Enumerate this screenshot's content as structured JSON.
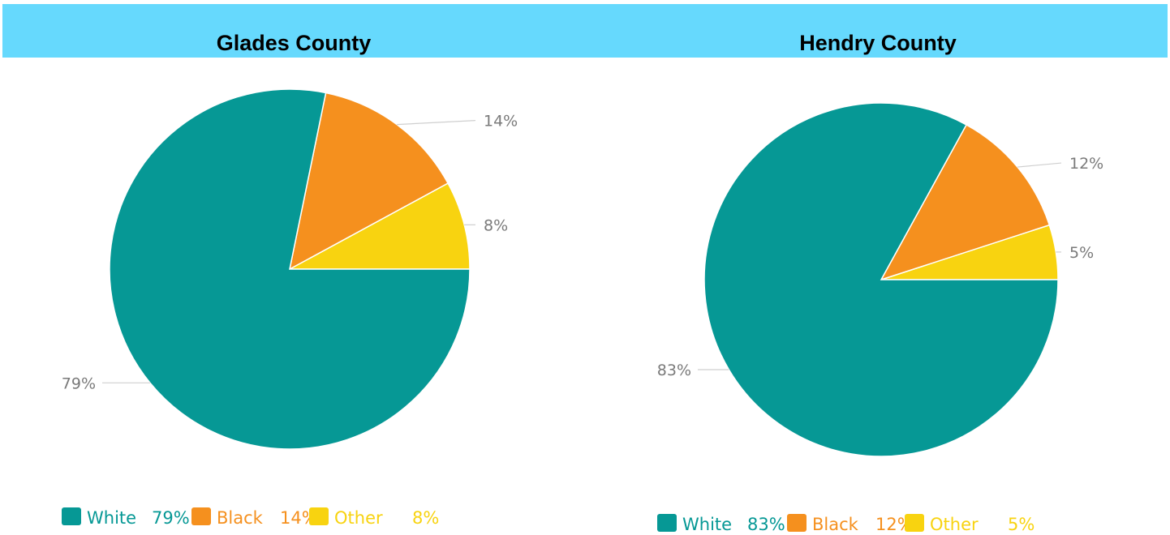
{
  "chart_data": [
    {
      "type": "pie",
      "title": "Glades County",
      "labels": [
        "White",
        "Black",
        "Other"
      ],
      "values": [
        79,
        14,
        8
      ],
      "value_labels": [
        "79%",
        "14%",
        "8%"
      ],
      "colors": [
        "#069895",
        "#f5901e",
        "#f8d310"
      ],
      "legend": {
        "placement": "bottom",
        "items": [
          {
            "label": "White",
            "value": "79%"
          },
          {
            "label": "Black",
            "value": "14%"
          },
          {
            "label": "Other",
            "value": "8%"
          }
        ]
      }
    },
    {
      "type": "pie",
      "title": "Hendry County",
      "labels": [
        "White",
        "Black",
        "Other"
      ],
      "values": [
        83,
        12,
        5
      ],
      "value_labels": [
        "83%",
        "12%",
        "5%"
      ],
      "colors": [
        "#069895",
        "#f5901e",
        "#f8d310"
      ],
      "legend": {
        "placement": "bottom",
        "items": [
          {
            "label": "White",
            "value": "83%"
          },
          {
            "label": "Black",
            "value": "12%"
          },
          {
            "label": "Other",
            "value": "5%"
          }
        ]
      }
    }
  ],
  "header_color": "#66d9fd"
}
